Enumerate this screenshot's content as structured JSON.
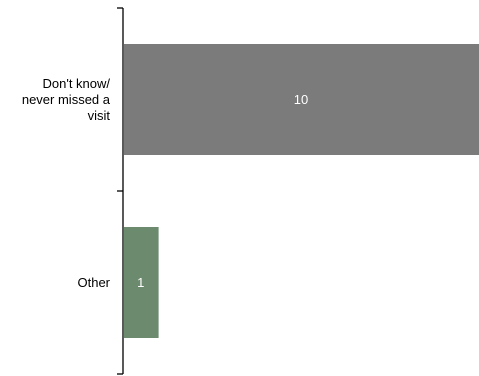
{
  "chart_data": {
    "type": "bar",
    "orientation": "horizontal",
    "categories": [
      [
        "Don't know/",
        "never missed a",
        "visit"
      ],
      [
        "Other"
      ]
    ],
    "values": [
      10,
      1
    ],
    "value_labels": [
      "10",
      "1"
    ],
    "bar_colors": [
      "#7b7b7b",
      "#6b8a6e"
    ],
    "xlim": [
      0,
      10
    ],
    "grid": false,
    "legend": "none"
  }
}
